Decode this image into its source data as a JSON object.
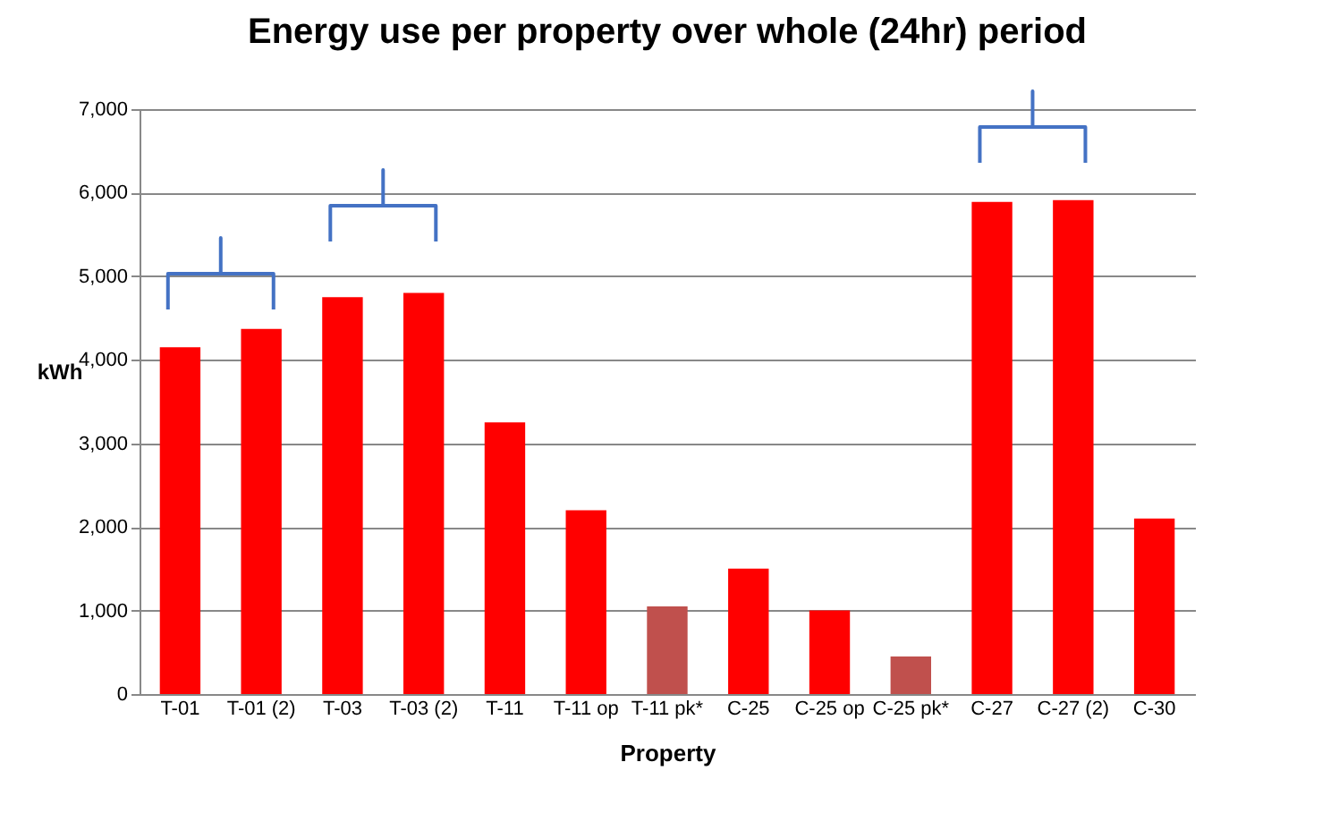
{
  "chart_data": {
    "type": "bar",
    "title": "Energy use per property over whole (24hr) period",
    "xlabel": "Property",
    "ylabel": "kWh",
    "categories": [
      "T-01",
      "T-01 (2)",
      "T-03",
      "T-03 (2)",
      "T-11",
      "T-11 op",
      "T-11 pk*",
      "C-25",
      "C-25 op",
      "C-25 pk*",
      "C-27",
      "C-27 (2)",
      "C-30"
    ],
    "values": [
      4150,
      4370,
      4750,
      4800,
      3250,
      2200,
      1050,
      1500,
      1000,
      450,
      5890,
      5910,
      2100
    ],
    "colors": [
      "#ff0000",
      "#ff0000",
      "#ff0000",
      "#ff0000",
      "#ff0000",
      "#ff0000",
      "#c0504d",
      "#ff0000",
      "#ff0000",
      "#c0504d",
      "#ff0000",
      "#ff0000",
      "#ff0000"
    ],
    "ylim": [
      0,
      7000
    ],
    "yticks": [
      0,
      {
        "value": 1000,
        "label": "1,000"
      },
      {
        "value": 2000,
        "label": "2,000"
      },
      {
        "value": 3000,
        "label": "3,000"
      },
      {
        "value": 4000,
        "label": "4,000"
      },
      {
        "value": 5000,
        "label": "5,000"
      },
      {
        "value": 6000,
        "label": "6,000"
      },
      {
        "value": 7000,
        "label": "7,000"
      }
    ],
    "grid": "y"
  }
}
